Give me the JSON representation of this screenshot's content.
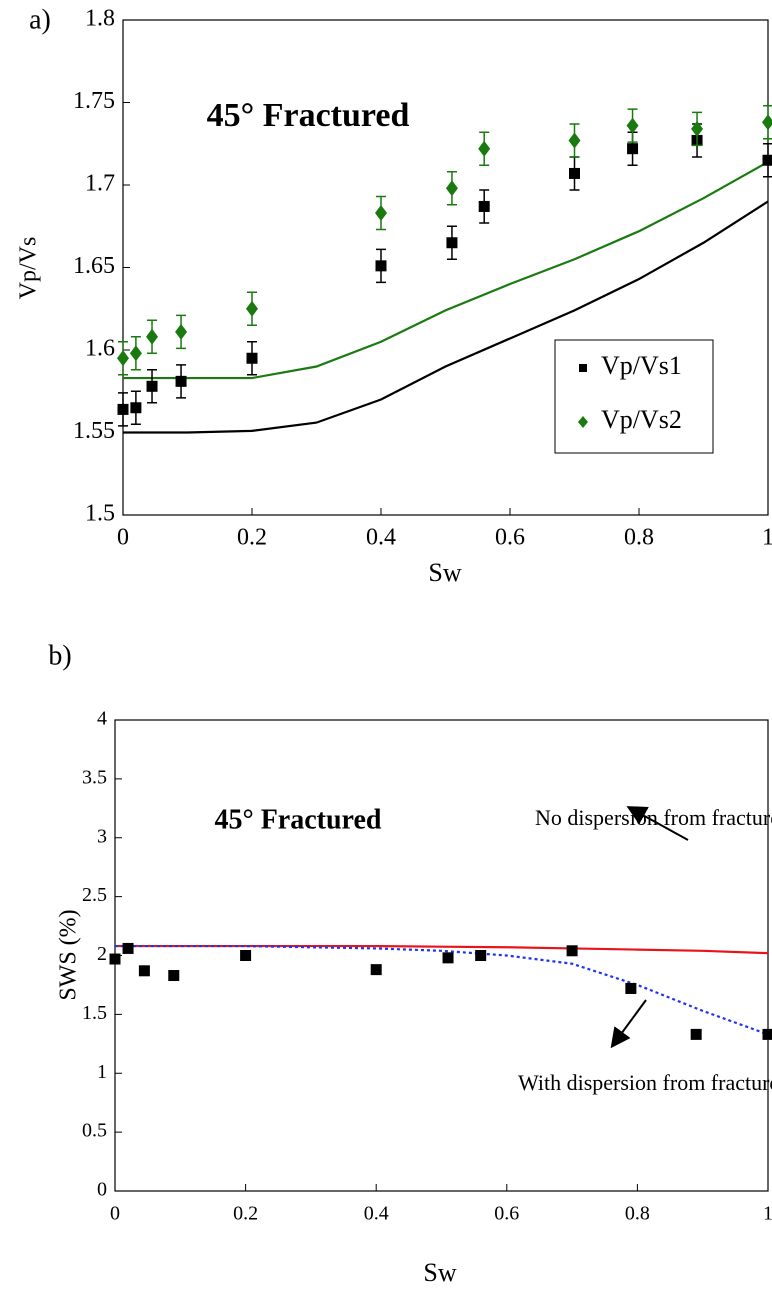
{
  "chart_data": [
    {
      "type": "scatter",
      "panel_label": "a)",
      "annotation": "45° Fractured",
      "xlabel": "Sw",
      "ylabel": "Vp/Vs",
      "x": [
        0,
        0.02,
        0.045,
        0.09,
        0.2,
        0.4,
        0.51,
        0.56,
        0.7,
        0.79,
        0.89,
        1
      ],
      "series": [
        {
          "name": "Vp/Vs1",
          "color": "#000000",
          "marker": "square",
          "values": [
            1.564,
            1.565,
            1.578,
            1.581,
            1.595,
            1.651,
            1.665,
            1.687,
            1.707,
            1.722,
            1.727,
            1.715
          ],
          "errors": [
            0.01,
            0.01,
            0.01,
            0.01,
            0.01,
            0.01,
            0.01,
            0.01,
            0.01,
            0.01,
            0.01,
            0.01
          ]
        },
        {
          "name": "Vp/Vs2",
          "color": "#1a7a10",
          "marker": "diamond",
          "values": [
            1.595,
            1.598,
            1.608,
            1.611,
            1.625,
            1.683,
            1.698,
            1.722,
            1.727,
            1.736,
            1.734,
            1.738
          ],
          "errors": [
            0.01,
            0.01,
            0.01,
            0.01,
            0.01,
            0.01,
            0.01,
            0.01,
            0.01,
            0.01,
            0.01,
            0.01
          ]
        }
      ],
      "lines": {
        "x": [
          0,
          0.1,
          0.2,
          0.3,
          0.4,
          0.5,
          0.6,
          0.7,
          0.8,
          0.9,
          1
        ],
        "series": [
          {
            "color": "#000000",
            "dash": false,
            "values": [
              1.55,
              1.55,
              1.551,
              1.556,
              1.57,
              1.59,
              1.607,
              1.624,
              1.643,
              1.665,
              1.69
            ]
          },
          {
            "color": "#1a7a10",
            "dash": false,
            "values": [
              1.583,
              1.583,
              1.583,
              1.59,
              1.605,
              1.624,
              1.64,
              1.655,
              1.672,
              1.692,
              1.714
            ]
          }
        ]
      },
      "xlim": [
        0,
        1
      ],
      "ylim": [
        1.5,
        1.8
      ],
      "xticks": [
        0,
        0.2,
        0.4,
        0.6,
        0.8,
        1
      ],
      "yticks": [
        1.5,
        1.55,
        1.6,
        1.65,
        1.7,
        1.75,
        1.8
      ],
      "legend": "lower right"
    },
    {
      "type": "scatter",
      "panel_label": "b)",
      "annotation": "45° Fractured",
      "xlabel": "Sw",
      "ylabel": "SWS (%)",
      "notes": [
        "No dispersion from fractures",
        "With dispersion from fractures"
      ],
      "x": [
        0,
        0.02,
        0.045,
        0.09,
        0.2,
        0.4,
        0.51,
        0.56,
        0.7,
        0.79,
        0.89,
        1
      ],
      "series": [
        {
          "color": "#000000",
          "marker": "square",
          "values": [
            1.97,
            2.06,
            1.87,
            1.83,
            2.0,
            1.88,
            1.98,
            2.0,
            2.04,
            1.72,
            1.33,
            1.33
          ]
        }
      ],
      "lines": {
        "x": [
          0,
          0.1,
          0.2,
          0.3,
          0.4,
          0.5,
          0.6,
          0.7,
          0.8,
          0.9,
          1
        ],
        "series": [
          {
            "color": "#e8141c",
            "dash": false,
            "values": [
              2.08,
              2.08,
              2.08,
              2.08,
              2.08,
              2.075,
              2.07,
              2.06,
              2.05,
              2.04,
              2.02
            ]
          },
          {
            "color": "#2233ee",
            "dash": true,
            "values": [
              2.08,
              2.08,
              2.08,
              2.07,
              2.06,
              2.04,
              2.0,
              1.93,
              1.75,
              1.53,
              1.33
            ]
          }
        ]
      },
      "xlim": [
        0,
        1
      ],
      "ylim": [
        0,
        4
      ],
      "xticks": [
        0,
        0.2,
        0.4,
        0.6,
        0.8,
        1
      ],
      "yticks": [
        0,
        0.5,
        1,
        1.5,
        2,
        2.5,
        3,
        3.5,
        4
      ]
    }
  ]
}
